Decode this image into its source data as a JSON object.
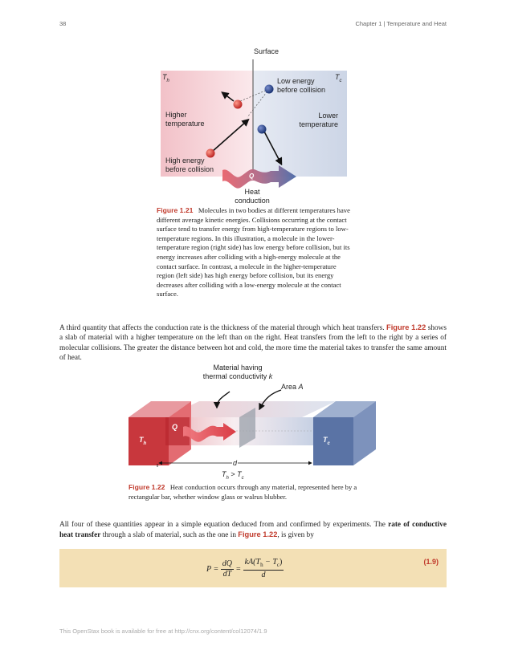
{
  "header": {
    "page_number": "38",
    "chapter": "Chapter 1 | Temperature and Heat"
  },
  "figure_1_21": {
    "surface_label": "Surface",
    "th_label": "T",
    "th_sub": "h",
    "tc_label": "T",
    "tc_sub": "c",
    "low_energy_label_1": "Low energy",
    "low_energy_label_2": "before collision",
    "higher_temp_1": "Higher",
    "higher_temp_2": "temperature",
    "lower_temp_1": "Lower",
    "lower_temp_2": "temperature",
    "high_energy_label_1": "High energy",
    "high_energy_label_2": "before collision",
    "q_label": "Q",
    "heat_conduction_1": "Heat",
    "heat_conduction_2": "conduction",
    "colors": {
      "hot": "#c0392b",
      "cold": "#1f3a7a",
      "hot_bg": "#f2c6cc",
      "cold_bg": "#d4dbe9"
    }
  },
  "caption_1": {
    "number": "Figure 1.21",
    "text": "Molecules in two bodies at different temperatures have different average kinetic energies. Collisions occurring at the contact surface tend to transfer energy from high-temperature regions to low-temperature regions. In this illustration, a molecule in the lower-temperature region (right side) has low energy before collision, but its energy increases after colliding with a high-energy molecule at the contact surface. In contrast, a molecule in the higher-temperature region (left side) has high energy before collision, but its energy decreases after colliding with a low-energy molecule at the contact surface."
  },
  "paragraph_1": {
    "text_a": "A third quantity that affects the conduction rate is the thickness of the material through which heat transfers. ",
    "link": "Figure 1.22",
    "text_b": " shows a slab of material with a higher temperature on the left than on the right. Heat transfers from the left to the right by a series of molecular collisions. The greater the distance between hot and cold, the more time the material takes to transfer the same amount of heat."
  },
  "figure_1_22": {
    "material_label_1": "Material having",
    "material_label_2": "thermal conductivity",
    "k_label": "k",
    "area_label": "Area",
    "area_var": "A",
    "th_label": "T",
    "th_sub": "h",
    "tc_label": "T",
    "tc_sub": "c",
    "q_label": "Q",
    "d_label": "d",
    "relation_th": "T",
    "relation_th_sub": "h",
    "relation_op": ">",
    "relation_tc": "T",
    "relation_tc_sub": "c",
    "colors": {
      "hot": "#c8373d",
      "cold": "#5a73a5"
    }
  },
  "caption_2": {
    "number": "Figure 1.22",
    "text": "Heat conduction occurs through any material, represented here by a rectangular bar, whether window glass or walrus blubber."
  },
  "paragraph_2": {
    "text_a": "All four of these quantities appear in a simple equation deduced from and confirmed by experiments. The ",
    "bold": "rate of conductive heat transfer",
    "text_b": " through a slab of material, such as the one in ",
    "link": "Figure 1.22",
    "text_c": ", is given by"
  },
  "equation": {
    "lhs": "P",
    "eq1": "=",
    "frac1_num": "dQ",
    "frac1_den": "dT",
    "eq2": "=",
    "frac2_num": "kA(T",
    "frac2_num_sub_h": "h",
    "frac2_num_mid": " − T",
    "frac2_num_sub_c": "c",
    "frac2_num_end": ")",
    "frac2_den": "d",
    "number": "(1.9)"
  },
  "footer": {
    "text": "This OpenStax book is available for free at http://cnx.org/content/col12074/1.9"
  }
}
